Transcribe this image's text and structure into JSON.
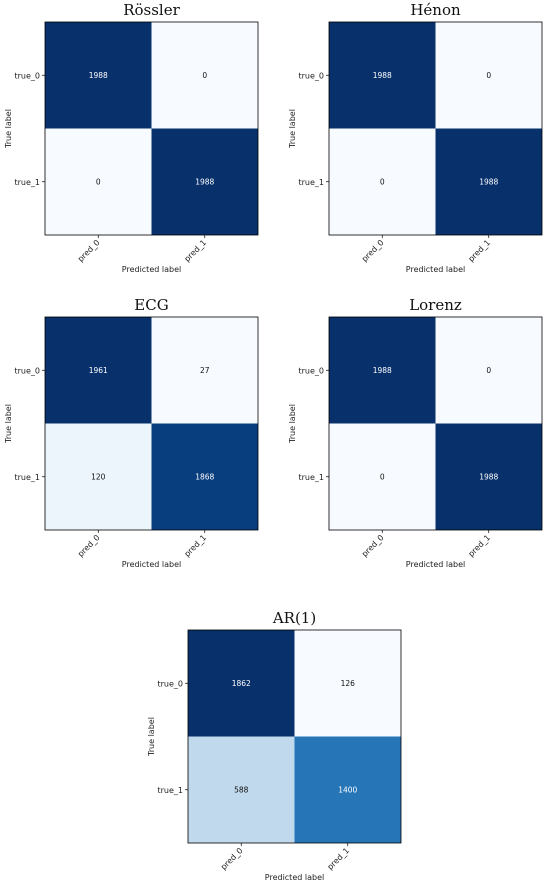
{
  "chart_data": [
    {
      "type": "heatmap",
      "title": "Rössler",
      "xlabel": "Predicted label",
      "ylabel": "True label",
      "x_categories": [
        "pred_0",
        "pred_1"
      ],
      "y_categories": [
        "true_0",
        "true_1"
      ],
      "values": [
        [
          1988,
          0
        ],
        [
          0,
          1988
        ]
      ],
      "colormap": "Blues"
    },
    {
      "type": "heatmap",
      "title": "Hénon",
      "xlabel": "Predicted label",
      "ylabel": "True label",
      "x_categories": [
        "pred_0",
        "pred_1"
      ],
      "y_categories": [
        "true_0",
        "true_1"
      ],
      "values": [
        [
          1988,
          0
        ],
        [
          0,
          1988
        ]
      ],
      "colormap": "Blues"
    },
    {
      "type": "heatmap",
      "title": "ECG",
      "xlabel": "Predicted label",
      "ylabel": "True label",
      "x_categories": [
        "pred_0",
        "pred_1"
      ],
      "y_categories": [
        "true_0",
        "true_1"
      ],
      "values": [
        [
          1961,
          27
        ],
        [
          120,
          1868
        ]
      ],
      "colormap": "Blues"
    },
    {
      "type": "heatmap",
      "title": "Lorenz",
      "xlabel": "Predicted label",
      "ylabel": "True label",
      "x_categories": [
        "pred_0",
        "pred_1"
      ],
      "y_categories": [
        "true_0",
        "true_1"
      ],
      "values": [
        [
          1988,
          0
        ],
        [
          0,
          1988
        ]
      ],
      "colormap": "Blues"
    },
    {
      "type": "heatmap",
      "title": "AR(1)",
      "xlabel": "Predicted label",
      "ylabel": "True label",
      "x_categories": [
        "pred_0",
        "pred_1"
      ],
      "y_categories": [
        "true_0",
        "true_1"
      ],
      "values": [
        [
          1862,
          126
        ],
        [
          588,
          1400
        ]
      ],
      "colormap": "Blues"
    }
  ]
}
